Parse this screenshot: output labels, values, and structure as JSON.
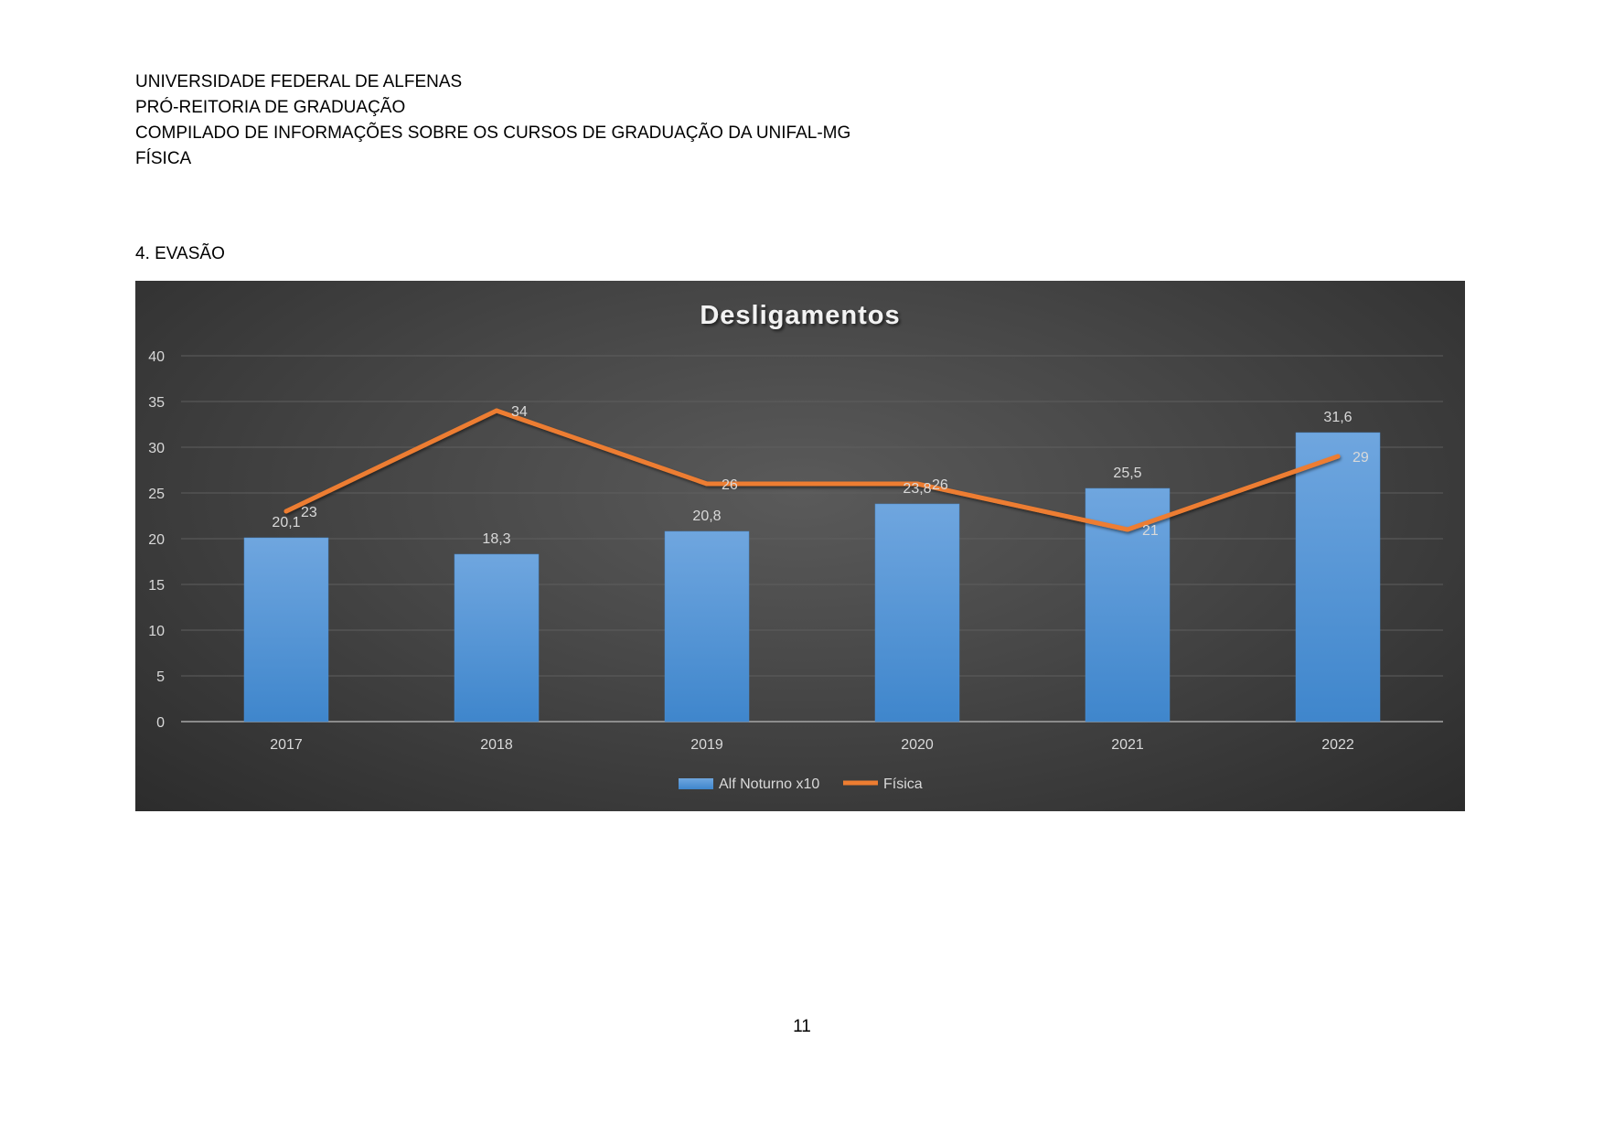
{
  "header": {
    "line1": "UNIVERSIDADE FEDERAL DE ALFENAS",
    "line2": "PRÓ-REITORIA DE GRADUAÇÃO",
    "line3": "COMPILADO DE INFORMAÇÕES SOBRE OS CURSOS DE GRADUAÇÃO DA UNIFAL-MG",
    "line4": "FÍSICA"
  },
  "section": {
    "title": "4. EVASÃO"
  },
  "page": {
    "number": "11"
  },
  "colors": {
    "bar": "#5b9bd5",
    "line": "#ed7d31",
    "chart_text": "#d9d9d9",
    "title_text": "#f2f2f2"
  },
  "chart_data": {
    "type": "bar",
    "title": "Desligamentos",
    "categories": [
      "2017",
      "2018",
      "2019",
      "2020",
      "2021",
      "2022"
    ],
    "series": [
      {
        "name": "Alf Noturno x10",
        "type": "bar",
        "values": [
          20.1,
          18.3,
          20.8,
          23.8,
          25.5,
          31.6
        ],
        "labels": [
          "20,1",
          "18,3",
          "20,8",
          "23,8",
          "25,5",
          "31,6"
        ]
      },
      {
        "name": "Física",
        "type": "line",
        "values": [
          23,
          34,
          26,
          26,
          21,
          29
        ],
        "labels": [
          "23",
          "34",
          "26",
          "26",
          "21",
          "29"
        ]
      }
    ],
    "ylim": [
      0,
      40
    ],
    "yticks": [
      0,
      5,
      10,
      15,
      20,
      25,
      30,
      35,
      40
    ],
    "ytick_labels": [
      "0",
      "5",
      "10",
      "15",
      "20",
      "25",
      "30",
      "35",
      "40"
    ],
    "grid": true,
    "legend": "bottom"
  }
}
